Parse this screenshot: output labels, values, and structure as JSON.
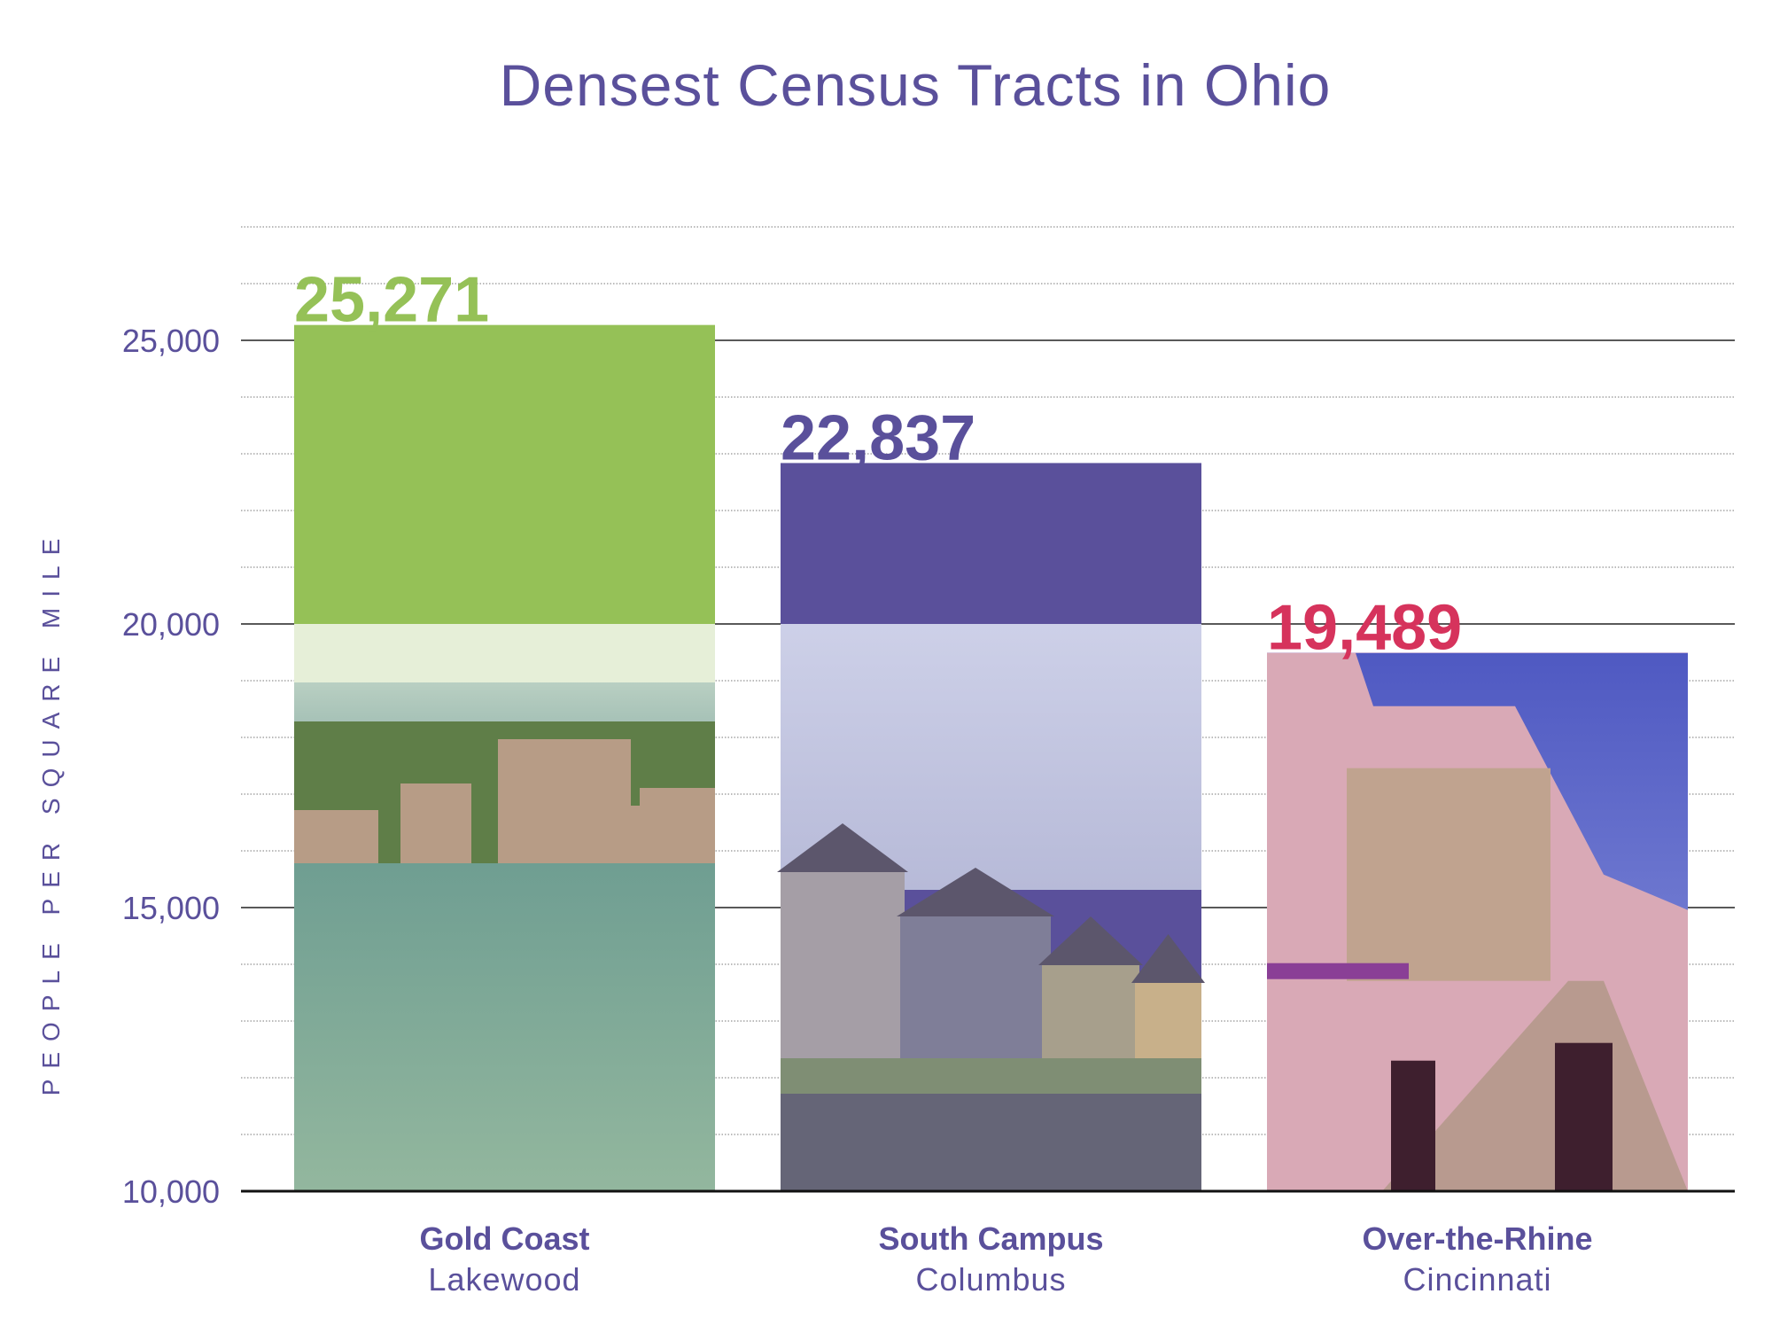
{
  "chart_data": {
    "type": "bar",
    "title": "Densest Census Tracts in Ohio",
    "ylabel": "PEOPLE PER SQUARE MILE",
    "xlabel": "",
    "ylim": [
      10000,
      27500
    ],
    "yticks": [
      10000,
      15000,
      20000,
      25000
    ],
    "tick_labels": [
      "10,000",
      "15,000",
      "20,000",
      "25,000"
    ],
    "grid": true,
    "categories": [
      {
        "name": "Gold Coast",
        "place": "Lakewood",
        "value": 25271,
        "label": "25,271",
        "color": "#95c157",
        "photo": "lakeside-high-rise-photo"
      },
      {
        "name": "South Campus",
        "place": "Columbus",
        "value": 22837,
        "label": "22,837",
        "color": "#5a509b",
        "photo": "houses-street-photo"
      },
      {
        "name": "Over-the-Rhine",
        "place": "Cincinnati",
        "value": 19489,
        "label": "19,489",
        "color": "#d6335c",
        "photo": "historic-street-photo"
      }
    ]
  }
}
